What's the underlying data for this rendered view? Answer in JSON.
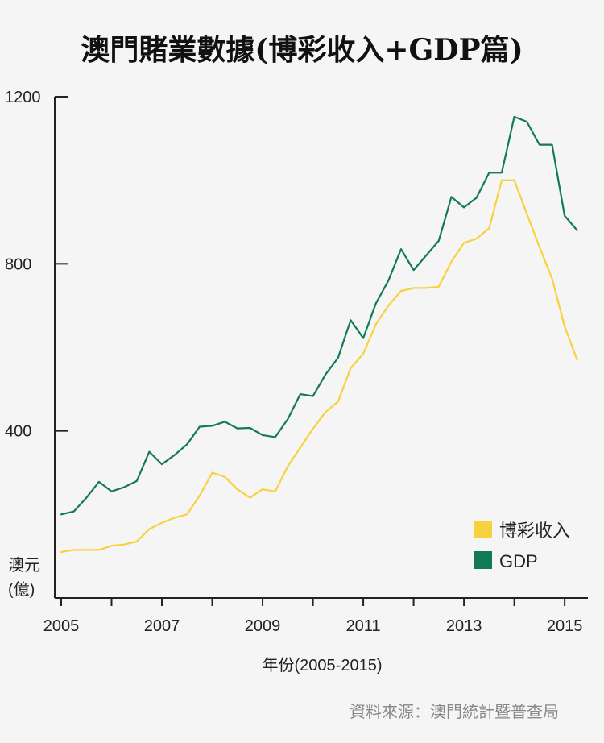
{
  "chart_data": {
    "type": "line",
    "title": "澳門賭業數據(博彩收入+GDP篇)",
    "ylabel_lines": [
      "澳元",
      "(億)"
    ],
    "xlabel": "年份(2005-2015)",
    "source": "資料來源：澳門統計暨普查局",
    "ylim": [
      0,
      1200
    ],
    "yticks": [
      400,
      800,
      1200
    ],
    "xlim": [
      2005.0,
      2015.35
    ],
    "xticks": [
      2005,
      2007,
      2009,
      2011,
      2013,
      2015
    ],
    "legend_position": "bottom-right",
    "grid": false,
    "series": [
      {
        "name": "博彩收入",
        "color": "#f7d23e",
        "x": [
          2005.0,
          2005.25,
          2005.5,
          2005.75,
          2006.0,
          2006.25,
          2006.5,
          2006.75,
          2007.0,
          2007.25,
          2007.5,
          2007.75,
          2008.0,
          2008.25,
          2008.5,
          2008.75,
          2009.0,
          2009.25,
          2009.5,
          2009.75,
          2010.0,
          2010.25,
          2010.5,
          2010.75,
          2011.0,
          2011.25,
          2011.5,
          2011.75,
          2012.0,
          2012.25,
          2012.5,
          2012.75,
          2013.0,
          2013.25,
          2013.5,
          2013.75,
          2014.0,
          2014.25,
          2014.5,
          2014.75,
          2015.0,
          2015.25
        ],
        "values": [
          110,
          115,
          115,
          115,
          125,
          128,
          135,
          165,
          180,
          192,
          200,
          245,
          300,
          290,
          260,
          240,
          260,
          255,
          315,
          360,
          405,
          445,
          470,
          550,
          585,
          655,
          700,
          735,
          742,
          742,
          745,
          805,
          850,
          860,
          885,
          1000,
          1000,
          920,
          840,
          765,
          650,
          570
        ]
      },
      {
        "name": "GDP",
        "color": "#127a5a",
        "x": [
          2005.0,
          2005.25,
          2005.5,
          2005.75,
          2006.0,
          2006.25,
          2006.5,
          2006.75,
          2007.0,
          2007.25,
          2007.5,
          2007.75,
          2008.0,
          2008.25,
          2008.5,
          2008.75,
          2009.0,
          2009.25,
          2009.5,
          2009.75,
          2010.0,
          2010.25,
          2010.5,
          2010.75,
          2011.0,
          2011.25,
          2011.5,
          2011.75,
          2012.0,
          2012.25,
          2012.5,
          2012.75,
          2013.0,
          2013.25,
          2013.5,
          2013.75,
          2014.0,
          2014.25,
          2014.5,
          2014.75,
          2015.0,
          2015.25
        ],
        "values": [
          200,
          207,
          240,
          278,
          255,
          265,
          280,
          350,
          320,
          342,
          368,
          410,
          412,
          422,
          406,
          407,
          390,
          385,
          428,
          488,
          483,
          535,
          575,
          665,
          622,
          705,
          760,
          835,
          785,
          820,
          855,
          960,
          935,
          958,
          1018,
          1018,
          1152,
          1140,
          1085,
          1085,
          915,
          880
        ]
      }
    ]
  }
}
